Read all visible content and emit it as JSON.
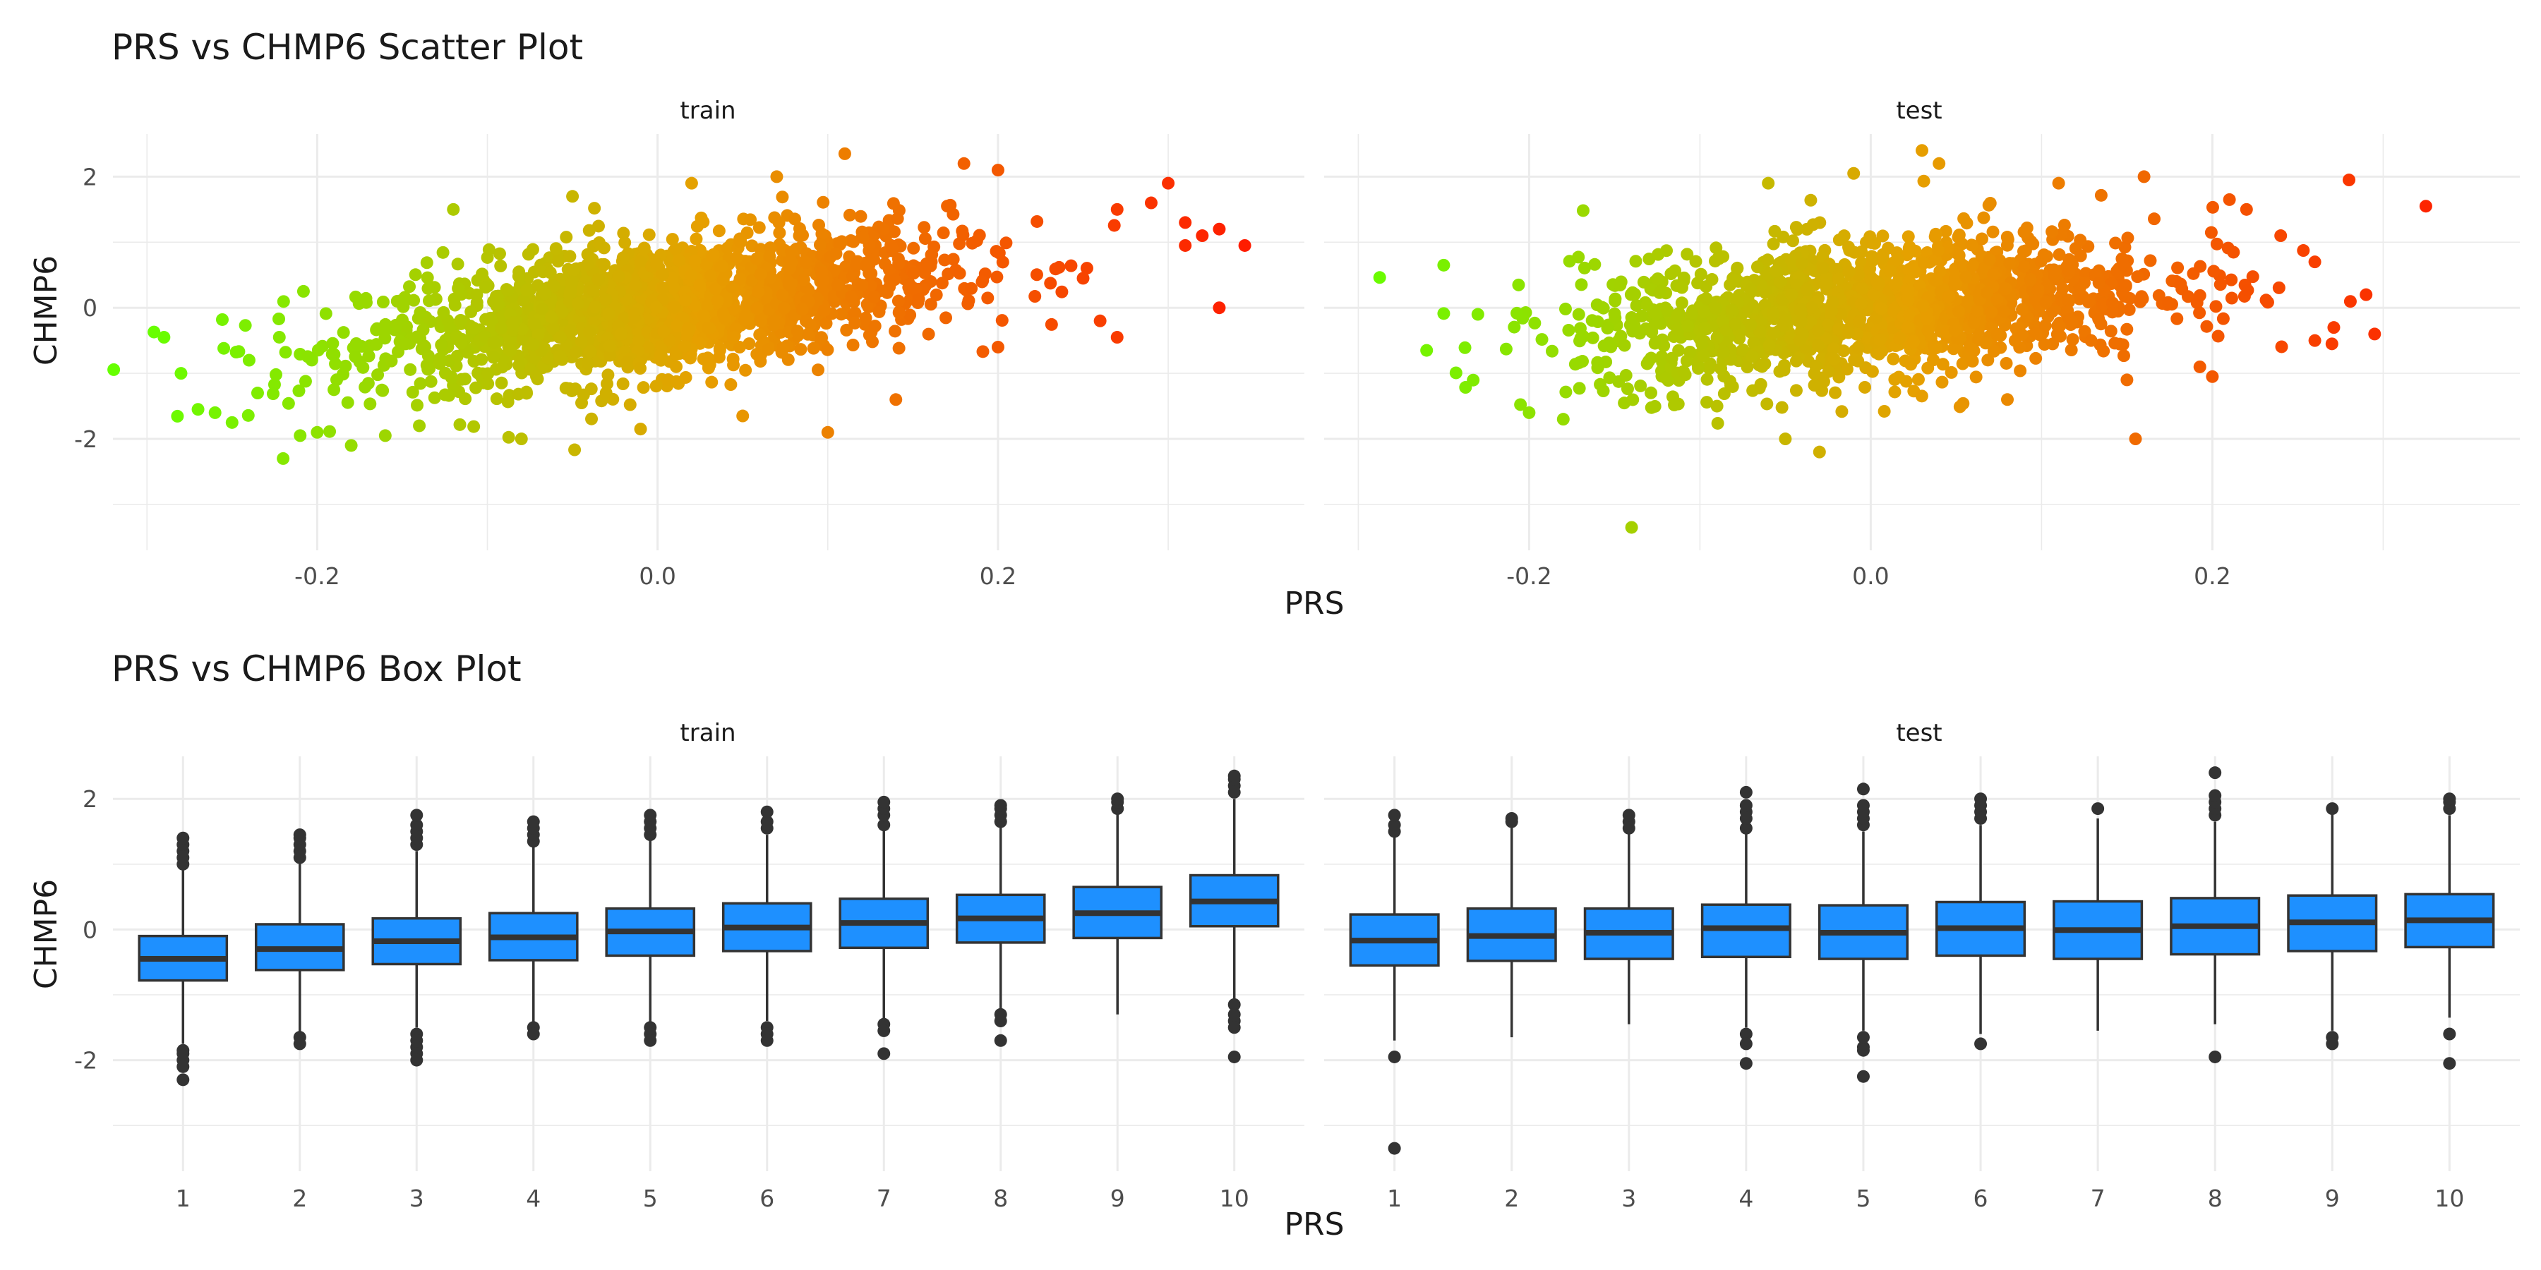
{
  "chart_data": [
    {
      "type": "scatter",
      "title": "PRS vs CHMP6 Scatter Plot",
      "xlabel": "PRS",
      "ylabel": "CHMP6",
      "xlim": [
        -0.32,
        0.38
      ],
      "ylim": [
        -3.7,
        2.65
      ],
      "x_ticks": [
        -0.2,
        0.0,
        0.2
      ],
      "x_tick_labels": [
        "-0.2",
        "0.0",
        "0.2"
      ],
      "y_ticks": [
        -2,
        0,
        2
      ],
      "y_tick_labels": [
        "-2",
        "0",
        "2"
      ],
      "grid": true,
      "legend": "none",
      "color_gradient": [
        "#66ff00",
        "#e6a000",
        "#ff1a00"
      ],
      "color_range": [
        -0.3,
        0.35
      ],
      "panels": [
        {
          "label": "train",
          "points": [
            [
              -0.29,
              -0.45
            ],
            [
              -0.28,
              -1.0
            ],
            [
              -0.27,
              -1.55
            ],
            [
              -0.26,
              -1.6
            ],
            [
              -0.25,
              -1.75
            ],
            [
              -0.24,
              -0.8
            ],
            [
              -0.235,
              -1.3
            ],
            [
              -0.22,
              -2.3
            ],
            [
              -0.21,
              -1.95
            ],
            [
              -0.2,
              -1.9
            ],
            [
              -0.18,
              -2.1
            ],
            [
              -0.16,
              -1.95
            ],
            [
              -0.14,
              -1.8
            ],
            [
              -0.08,
              -2.0
            ],
            [
              -0.01,
              -1.85
            ],
            [
              0.1,
              -1.9
            ],
            [
              0.11,
              2.35
            ],
            [
              0.18,
              2.2
            ],
            [
              0.2,
              2.1
            ],
            [
              0.27,
              1.5
            ],
            [
              0.29,
              1.6
            ],
            [
              0.3,
              1.9
            ],
            [
              0.31,
              1.3
            ],
            [
              0.32,
              1.1
            ],
            [
              0.33,
              1.2
            ],
            [
              0.31,
              0.95
            ],
            [
              0.25,
              0.45
            ],
            [
              0.26,
              -0.2
            ],
            [
              0.27,
              -0.45
            ],
            [
              0.33,
              0.0
            ],
            [
              0.345,
              0.95
            ],
            [
              0.2,
              -0.6
            ],
            [
              0.14,
              -1.4
            ],
            [
              0.05,
              -1.65
            ],
            [
              -0.12,
              1.5
            ],
            [
              -0.05,
              1.7
            ],
            [
              0.02,
              1.9
            ],
            [
              0.07,
              2.0
            ]
          ],
          "cloud": {
            "x_mean": 0.0,
            "x_sd": 0.085,
            "intercept": 0.0,
            "slope": 3.2,
            "y_sd": 0.5,
            "n": 1700
          }
        },
        {
          "label": "test",
          "points": [
            [
              -0.25,
              0.65
            ],
            [
              -0.26,
              -0.65
            ],
            [
              -0.23,
              -0.1
            ],
            [
              -0.2,
              -1.6
            ],
            [
              -0.18,
              -1.7
            ],
            [
              -0.14,
              -3.35
            ],
            [
              -0.09,
              -1.5
            ],
            [
              -0.05,
              -2.0
            ],
            [
              -0.03,
              -2.2
            ],
            [
              0.03,
              2.4
            ],
            [
              0.04,
              2.2
            ],
            [
              0.11,
              1.9
            ],
            [
              0.16,
              2.0
            ],
            [
              0.155,
              -2.0
            ],
            [
              0.21,
              1.65
            ],
            [
              0.22,
              1.5
            ],
            [
              0.24,
              1.1
            ],
            [
              0.26,
              0.7
            ],
            [
              0.26,
              -0.5
            ],
            [
              0.27,
              -0.55
            ],
            [
              0.28,
              1.95
            ],
            [
              0.29,
              0.2
            ],
            [
              0.295,
              -0.4
            ],
            [
              0.325,
              1.55
            ],
            [
              -0.06,
              1.9
            ],
            [
              -0.01,
              2.05
            ],
            [
              0.08,
              -1.4
            ],
            [
              0.15,
              -1.1
            ],
            [
              0.2,
              -1.05
            ]
          ],
          "cloud": {
            "x_mean": 0.0,
            "x_sd": 0.085,
            "intercept": 0.0,
            "slope": 2.2,
            "y_sd": 0.52,
            "n": 1500
          }
        }
      ]
    },
    {
      "type": "box",
      "title": "PRS vs CHMP6 Box Plot",
      "xlabel": "PRS",
      "ylabel": "CHMP6",
      "ylim": [
        -3.7,
        2.65
      ],
      "categories": [
        "1",
        "2",
        "3",
        "4",
        "5",
        "6",
        "7",
        "8",
        "9",
        "10"
      ],
      "y_ticks": [
        -2,
        0,
        2
      ],
      "y_tick_labels": [
        "-2",
        "0",
        "2"
      ],
      "grid": true,
      "legend": "none",
      "box_fill": "#1e90ff",
      "box_stroke": "#333333",
      "panels": [
        {
          "label": "train",
          "boxes": [
            {
              "cat": "1",
              "q1": -0.78,
              "median": -0.45,
              "q3": -0.1,
              "lower": -1.75,
              "upper": 0.95,
              "outliers": [
                1.0,
                1.1,
                1.2,
                1.3,
                1.4,
                -1.85,
                -1.9,
                -2.0,
                -2.1,
                -2.3
              ]
            },
            {
              "cat": "2",
              "q1": -0.62,
              "median": -0.3,
              "q3": 0.08,
              "lower": -1.6,
              "upper": 1.05,
              "outliers": [
                1.1,
                1.2,
                1.3,
                1.4,
                1.45,
                -1.65,
                -1.75
              ]
            },
            {
              "cat": "3",
              "q1": -0.53,
              "median": -0.18,
              "q3": 0.17,
              "lower": -1.5,
              "upper": 1.2,
              "outliers": [
                1.3,
                1.4,
                1.5,
                1.6,
                1.75,
                -1.6,
                -1.7,
                -1.8,
                -1.9,
                -2.0
              ]
            },
            {
              "cat": "4",
              "q1": -0.47,
              "median": -0.12,
              "q3": 0.25,
              "lower": -1.45,
              "upper": 1.3,
              "outliers": [
                1.35,
                1.45,
                1.55,
                1.65,
                -1.5,
                -1.6
              ]
            },
            {
              "cat": "5",
              "q1": -0.4,
              "median": -0.03,
              "q3": 0.32,
              "lower": -1.45,
              "upper": 1.4,
              "outliers": [
                1.45,
                1.55,
                1.65,
                1.75,
                -1.5,
                -1.6,
                -1.7
              ]
            },
            {
              "cat": "6",
              "q1": -0.33,
              "median": 0.03,
              "q3": 0.4,
              "lower": -1.4,
              "upper": 1.45,
              "outliers": [
                1.55,
                1.65,
                1.8,
                -1.5,
                -1.6,
                -1.7
              ]
            },
            {
              "cat": "7",
              "q1": -0.28,
              "median": 0.1,
              "q3": 0.47,
              "lower": -1.4,
              "upper": 1.55,
              "outliers": [
                1.6,
                1.75,
                1.85,
                1.95,
                -1.45,
                -1.55,
                -1.9
              ]
            },
            {
              "cat": "8",
              "q1": -0.2,
              "median": 0.17,
              "q3": 0.53,
              "lower": -1.25,
              "upper": 1.6,
              "outliers": [
                1.65,
                1.75,
                1.85,
                1.9,
                -1.3,
                -1.4,
                -1.7
              ]
            },
            {
              "cat": "9",
              "q1": -0.13,
              "median": 0.25,
              "q3": 0.65,
              "lower": -1.3,
              "upper": 1.8,
              "outliers": [
                1.85,
                1.95,
                2.0
              ]
            },
            {
              "cat": "10",
              "q1": 0.05,
              "median": 0.43,
              "q3": 0.83,
              "lower": -1.1,
              "upper": 2.0,
              "outliers": [
                2.1,
                2.2,
                2.3,
                2.35,
                -1.15,
                -1.3,
                -1.4,
                -1.5,
                -1.95
              ]
            }
          ]
        },
        {
          "label": "test",
          "boxes": [
            {
              "cat": "1",
              "q1": -0.55,
              "median": -0.17,
              "q3": 0.23,
              "lower": -1.7,
              "upper": 1.45,
              "outliers": [
                1.5,
                1.6,
                1.75,
                -1.95,
                -3.35
              ]
            },
            {
              "cat": "2",
              "q1": -0.48,
              "median": -0.1,
              "q3": 0.32,
              "lower": -1.65,
              "upper": 1.6,
              "outliers": [
                1.65,
                1.7
              ]
            },
            {
              "cat": "3",
              "q1": -0.45,
              "median": -0.05,
              "q3": 0.32,
              "lower": -1.45,
              "upper": 1.5,
              "outliers": [
                1.55,
                1.65,
                1.75
              ]
            },
            {
              "cat": "4",
              "q1": -0.42,
              "median": 0.02,
              "q3": 0.38,
              "lower": -1.5,
              "upper": 1.5,
              "outliers": [
                1.55,
                1.7,
                1.8,
                1.9,
                2.1,
                -1.6,
                -1.75,
                -2.05
              ]
            },
            {
              "cat": "5",
              "q1": -0.45,
              "median": -0.05,
              "q3": 0.37,
              "lower": -1.55,
              "upper": 1.5,
              "outliers": [
                1.6,
                1.7,
                1.8,
                1.9,
                2.15,
                -1.65,
                -1.8,
                -1.85,
                -2.25
              ]
            },
            {
              "cat": "6",
              "q1": -0.4,
              "median": 0.02,
              "q3": 0.42,
              "lower": -1.6,
              "upper": 1.6,
              "outliers": [
                1.7,
                1.8,
                1.9,
                2.0,
                -1.75
              ]
            },
            {
              "cat": "7",
              "q1": -0.45,
              "median": -0.01,
              "q3": 0.43,
              "lower": -1.55,
              "upper": 1.7,
              "outliers": [
                1.85
              ]
            },
            {
              "cat": "8",
              "q1": -0.38,
              "median": 0.05,
              "q3": 0.48,
              "lower": -1.45,
              "upper": 1.65,
              "outliers": [
                1.75,
                1.85,
                1.95,
                2.05,
                2.4,
                -1.95
              ]
            },
            {
              "cat": "9",
              "q1": -0.33,
              "median": 0.11,
              "q3": 0.52,
              "lower": -1.55,
              "upper": 1.8,
              "outliers": [
                1.85,
                -1.65,
                -1.75
              ]
            },
            {
              "cat": "10",
              "q1": -0.27,
              "median": 0.14,
              "q3": 0.54,
              "lower": -1.35,
              "upper": 1.75,
              "outliers": [
                1.85,
                1.95,
                2.0,
                -1.6,
                -2.05
              ]
            }
          ]
        }
      ]
    }
  ]
}
